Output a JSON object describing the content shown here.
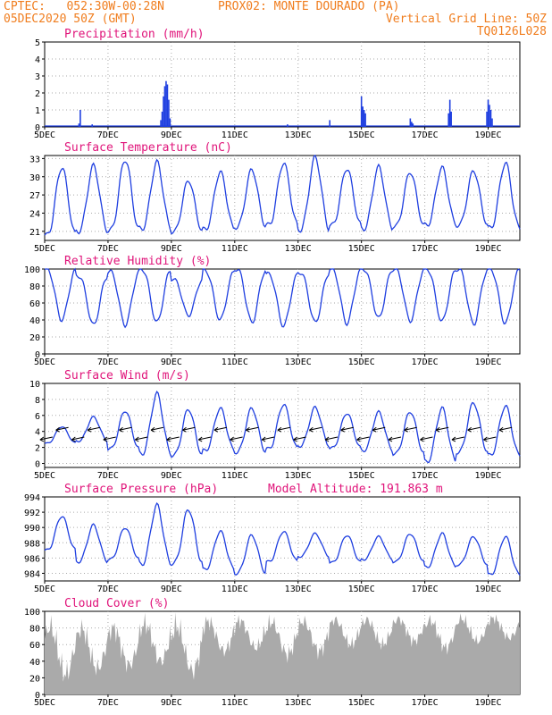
{
  "header": {
    "line1_left": "CPTEC:   052:30W-00:28N",
    "line1_right": "PROX02: MONTE DOURADO (PA)",
    "line2_left": "05DEC2020 50Z (GMT)",
    "line2_right": "Vertical Grid Line: 50Z",
    "line3_right": "TQ0126L028"
  },
  "x_axis": {
    "labels": [
      "5DEC",
      "7DEC",
      "9DEC",
      "11DEC",
      "13DEC",
      "15DEC",
      "17DEC",
      "19DEC"
    ],
    "hours": [
      0,
      48,
      96,
      144,
      192,
      240,
      288,
      336
    ],
    "range_hours": [
      0,
      360
    ]
  },
  "colors": {
    "line": "#1f3fe0",
    "bar": "#1f3fe0",
    "cloud": "#aaaaaa",
    "title": "#e0147a",
    "header": "#f07d1e",
    "grid": "#aaaaaa"
  },
  "chart_data": [
    {
      "type": "bar",
      "title": "Precipitation (mm/h)",
      "ylim": [
        0,
        5
      ],
      "yticks": [
        0,
        1,
        2,
        3,
        4,
        5
      ],
      "x": [
        26,
        27,
        36,
        88,
        89,
        90,
        91,
        92,
        93,
        94,
        95,
        184,
        216,
        240,
        241,
        242,
        243,
        277,
        278,
        279,
        306,
        307,
        308,
        335,
        336,
        337,
        338,
        339
      ],
      "values": [
        0.2,
        1.0,
        0.15,
        0.4,
        0.9,
        1.8,
        2.4,
        2.7,
        2.5,
        1.6,
        0.5,
        0.15,
        0.4,
        1.8,
        1.2,
        1.0,
        0.8,
        0.5,
        0.3,
        0.2,
        0.8,
        1.6,
        0.9,
        0.9,
        1.6,
        1.3,
        1.0,
        0.5
      ]
    },
    {
      "type": "line",
      "title": "Surface Temperature (nC)",
      "ylim": [
        19.5,
        33.5
      ],
      "yticks": [
        21,
        24,
        27,
        30,
        33
      ],
      "daily_min": [
        20.3,
        21.0,
        21.1,
        21.4,
        20.9,
        21.3,
        21.7,
        22.0,
        21.3,
        22.0,
        21.4,
        21.8,
        22.0,
        22.0,
        21.5
      ],
      "daily_max": [
        31.6,
        31.8,
        32.9,
        32.4,
        29.4,
        30.8,
        31.2,
        32.3,
        33.2,
        31.4,
        31.6,
        30.8,
        31.5,
        31.0,
        32.3
      ]
    },
    {
      "type": "line",
      "title": "Relative Humidity (%)",
      "ylim": [
        0,
        100
      ],
      "yticks": [
        0,
        20,
        40,
        60,
        80,
        100
      ],
      "daily_min": [
        40,
        34,
        34,
        37,
        45,
        40,
        37,
        33,
        37,
        36,
        42,
        39,
        38,
        35,
        36
      ],
      "daily_max": [
        100,
        92,
        97,
        100,
        88,
        98,
        100,
        94,
        96,
        100,
        100,
        100,
        100,
        100,
        100
      ]
    },
    {
      "type": "line",
      "title": "Surface Wind (m/s)",
      "ylim": [
        -0.5,
        10
      ],
      "yticks": [
        0,
        2,
        4,
        6,
        8,
        10
      ],
      "daily_min": [
        2.5,
        2.8,
        1.8,
        1.2,
        1.0,
        1.6,
        1.4,
        1.8,
        2.2,
        1.9,
        1.6,
        1.2,
        0.2,
        1.4,
        1.0
      ],
      "daily_max": [
        4.6,
        5.8,
        6.6,
        8.7,
        6.8,
        6.9,
        6.9,
        7.4,
        7.0,
        6.3,
        6.4,
        6.5,
        6.9,
        7.6,
        7.2
      ]
    },
    {
      "type": "line",
      "title": "Surface Pressure (hPa)",
      "annotation": "Model Altitude: 191.863 m",
      "ylim": [
        983,
        994
      ],
      "yticks": [
        984,
        986,
        988,
        990,
        992,
        994
      ],
      "daily_min": [
        987.0,
        985.5,
        985.8,
        985.2,
        985.3,
        984.5,
        984.0,
        985.5,
        986.2,
        985.4,
        985.8,
        985.5,
        984.8,
        985.1,
        983.8
      ],
      "daily_max": [
        991.5,
        990.3,
        990.0,
        992.9,
        992.4,
        989.5,
        989.0,
        989.5,
        989.2,
        989.0,
        988.8,
        989.2,
        989.2,
        988.8,
        988.8
      ]
    },
    {
      "type": "area",
      "title": "Cloud Cover (%)",
      "ylim": [
        0,
        100
      ],
      "yticks": [
        0,
        20,
        40,
        60,
        80,
        100
      ],
      "daily_min": [
        5,
        15,
        20,
        25,
        10,
        40,
        45,
        35,
        40,
        50,
        50,
        55,
        45,
        55,
        60
      ],
      "daily_max": [
        100,
        95,
        95,
        100,
        100,
        100,
        100,
        100,
        100,
        100,
        100,
        100,
        100,
        100,
        100
      ]
    }
  ]
}
